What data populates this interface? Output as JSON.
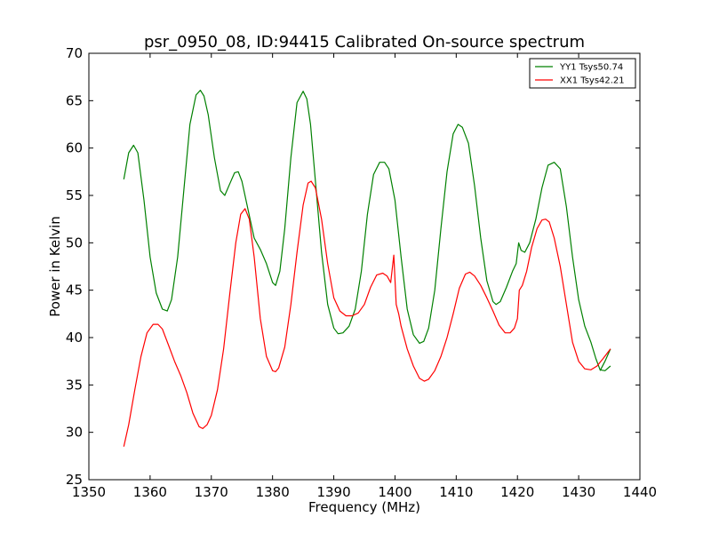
{
  "chart_data": {
    "type": "line",
    "title": "psr_0950_08, ID:94415 Calibrated On-source spectrum",
    "xlabel": "Frequency (MHz)",
    "ylabel": "Power in Kelvin",
    "xlim": [
      1350,
      1440
    ],
    "ylim": [
      25,
      70
    ],
    "xticks": [
      1350,
      1360,
      1370,
      1380,
      1390,
      1400,
      1410,
      1420,
      1430,
      1440
    ],
    "yticks": [
      25,
      30,
      35,
      40,
      45,
      50,
      55,
      60,
      65,
      70
    ],
    "grid": false,
    "legend_position": "top-right",
    "series": [
      {
        "name": "YY1 Tsys50.74",
        "color": "#008000",
        "x": [
          1355.7,
          1356.5,
          1357.3,
          1358,
          1359,
          1360,
          1361,
          1362,
          1362.8,
          1363.5,
          1364.5,
          1365.5,
          1366.5,
          1367.5,
          1368.2,
          1368.8,
          1369.5,
          1370.5,
          1371.5,
          1372.2,
          1373,
          1373.8,
          1374.4,
          1375,
          1376,
          1377,
          1378,
          1379,
          1380,
          1380.5,
          1381.2,
          1382,
          1383,
          1384,
          1385,
          1385.6,
          1386.2,
          1387,
          1388,
          1389,
          1390,
          1390.7,
          1391.5,
          1392.5,
          1393.5,
          1394.5,
          1395.5,
          1396.5,
          1397.5,
          1398.3,
          1399,
          1400,
          1401,
          1402,
          1403,
          1404,
          1404.7,
          1405.5,
          1406.5,
          1407.5,
          1408.5,
          1409.5,
          1410.3,
          1411,
          1412,
          1413,
          1414,
          1415,
          1416,
          1416.5,
          1417.2,
          1418.2,
          1419.2,
          1419.8,
          1420.2,
          1420.6,
          1421.2,
          1422,
          1423,
          1424,
          1425,
          1426,
          1427,
          1428,
          1429,
          1430,
          1431,
          1432,
          1432.8,
          1433.5,
          1434.3,
          1435.2
        ],
        "y": [
          56.7,
          59.5,
          60.3,
          59.5,
          54.5,
          48.5,
          44.7,
          43.0,
          42.8,
          44.0,
          48.5,
          55.5,
          62.5,
          65.6,
          66.1,
          65.5,
          63.5,
          59.0,
          55.5,
          55.0,
          56.2,
          57.4,
          57.5,
          56.5,
          53.5,
          50.5,
          49.3,
          47.8,
          45.8,
          45.5,
          47.0,
          51.5,
          59.0,
          64.8,
          66.0,
          65.2,
          62.5,
          56.5,
          49.0,
          43.5,
          41.0,
          40.4,
          40.5,
          41.2,
          43.0,
          47.0,
          53.0,
          57.2,
          58.5,
          58.5,
          57.8,
          54.5,
          48.5,
          43.0,
          40.3,
          39.4,
          39.6,
          41.0,
          45.0,
          51.5,
          57.5,
          61.5,
          62.5,
          62.2,
          60.5,
          56.0,
          50.5,
          46.0,
          43.8,
          43.5,
          43.8,
          45.3,
          47.0,
          47.8,
          50.0,
          49.2,
          49.0,
          50.0,
          52.5,
          55.8,
          58.2,
          58.5,
          57.8,
          53.8,
          48.5,
          44.0,
          41.2,
          39.5,
          37.8,
          36.6,
          36.5,
          37.0
        ],
        "x2": [
          1433.5,
          1434.3,
          1435.2
        ],
        "y2": [
          36.5,
          37.5,
          38.8
        ]
      },
      {
        "name": "XX1 Tsys42.21",
        "color": "#ff0000",
        "x": [
          1355.7,
          1356.5,
          1357.5,
          1358.5,
          1359.5,
          1360.5,
          1361.3,
          1362,
          1363,
          1364,
          1365,
          1366,
          1367,
          1368,
          1368.6,
          1369.3,
          1370,
          1371,
          1372,
          1373,
          1374,
          1374.8,
          1375.5,
          1376.2,
          1377,
          1378,
          1379,
          1380,
          1380.5,
          1381,
          1382,
          1383,
          1384,
          1385,
          1385.8,
          1386.3,
          1387,
          1388,
          1389,
          1390,
          1391,
          1392,
          1393,
          1394,
          1395,
          1396,
          1397,
          1398,
          1398.7,
          1399.3,
          1399.8,
          1400.2,
          1400.6,
          1401,
          1402,
          1403,
          1404,
          1404.8,
          1405.5,
          1406.5,
          1407.5,
          1408.5,
          1409.5,
          1410.5,
          1411.5,
          1412.2,
          1413,
          1414,
          1415,
          1416,
          1417,
          1418,
          1418.8,
          1419.5,
          1420,
          1420.3,
          1420.8,
          1421.5,
          1422.3,
          1423.2,
          1424,
          1424.6,
          1425.2,
          1426,
          1427,
          1428,
          1429,
          1430,
          1431,
          1432,
          1433,
          1434,
          1435.2
        ],
        "y": [
          28.5,
          30.8,
          34.5,
          38.0,
          40.5,
          41.4,
          41.4,
          40.9,
          39.2,
          37.5,
          36.0,
          34.2,
          32.0,
          30.6,
          30.4,
          30.8,
          31.8,
          34.5,
          38.8,
          44.5,
          50.0,
          53.0,
          53.6,
          52.5,
          48.5,
          42.0,
          38.0,
          36.5,
          36.4,
          36.8,
          39.0,
          43.5,
          49.0,
          54.0,
          56.3,
          56.5,
          55.8,
          52.5,
          47.8,
          44.2,
          42.8,
          42.3,
          42.3,
          42.6,
          43.5,
          45.3,
          46.6,
          46.8,
          46.5,
          45.8,
          48.7,
          43.5,
          42.5,
          41.2,
          38.8,
          37.0,
          35.7,
          35.4,
          35.6,
          36.5,
          38.0,
          40.0,
          42.5,
          45.2,
          46.7,
          46.9,
          46.5,
          45.5,
          44.2,
          42.8,
          41.3,
          40.5,
          40.5,
          41.0,
          42.0,
          45.0,
          45.5,
          47.0,
          49.5,
          51.5,
          52.4,
          52.5,
          52.2,
          50.5,
          47.5,
          43.5,
          39.5,
          37.5,
          36.7,
          36.6,
          37.0,
          37.8,
          38.8
        ]
      }
    ]
  }
}
